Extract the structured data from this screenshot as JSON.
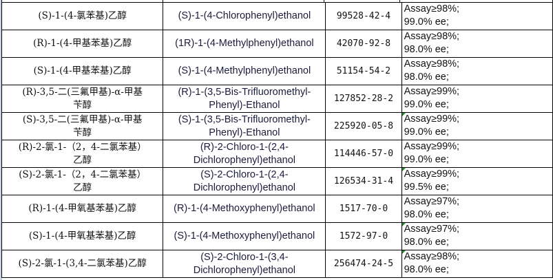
{
  "rows": [
    {
      "cn": "(S)-1-(4-氯苯基)乙醇",
      "en": "(S)-1-(4-Chlorophenyl)ethanol",
      "cas": "99528-42-4",
      "assay": "Assay≥98%;",
      "ee": "99.0% ee;",
      "flag": false
    },
    {
      "cn": "(R)-1-(4-甲基苯基)乙醇",
      "en": "(1R)-1-(4-Methylphenyl)ethanol",
      "cas": "42070-92-8",
      "assay": "Assay≥98%;",
      "ee": "98.0% ee;",
      "flag": false
    },
    {
      "cn": "(S)-1-(4-甲基苯基)乙醇",
      "en": "(S)-1-(4-Methylphenyl)ethanol",
      "cas": "51154-54-2",
      "assay": "Assay≥98%;",
      "ee": "98.0% ee;",
      "flag": false
    },
    {
      "cn": "(R)-3,5-二(三氟甲基)-α-甲基\n苄醇",
      "en": "(R)-1-(3,5-Bis-Trifluoromethyl-\nPhenyl)-Ethanol",
      "cas": "127852-28-2",
      "assay": "Assay≥99%;",
      "ee": "99.0% ee;",
      "flag": false
    },
    {
      "cn": "(S)-3,5-二(三氟甲基)-α-甲基\n苄醇",
      "en": "(S)-1-(3,5-Bis-Trifluoromethyl-\nPhenyl)-Ethanol",
      "cas": "225920-05-8",
      "assay": "Assay≥99%;",
      "ee": "99.0% ee;",
      "flag": true
    },
    {
      "cn": "(R)-2-氯-1-（2，4-二氯苯基）\n乙醇",
      "en": "(R)-2-Chloro-1-(2,4-\nDichlorophenyl)ethanol",
      "cas": "114446-57-0",
      "assay": "Assay≥99%;",
      "ee": "99.0% ee;",
      "flag": false
    },
    {
      "cn": "(S)-2-氯-1-（2，4-二氯苯基）\n乙醇",
      "en": "(S)-2-Chloro-1-(2,4-\nDichlorophenyl)ethanol",
      "cas": "126534-31-4",
      "assay": "Assay≥99%;",
      "ee": "99.5% ee;",
      "flag": true
    },
    {
      "cn": "(R)-1-(4-甲氧基苯基)乙醇",
      "en": "(R)-1-(4-Methoxyphenyl)ethanol",
      "cas": "1517-70-0",
      "assay": "Assay≥97%;",
      "ee": "98.0% ee;",
      "flag": false
    },
    {
      "cn": "(S)-1-(4-甲氧基苯基)乙醇",
      "en": "(S)-1-(4-Methoxyphenyl)ethanol",
      "cas": "1572-97-0",
      "assay": "Assay≥97%;",
      "ee": "98.0% ee;",
      "flag": true
    },
    {
      "cn": "(S)-2-氯-1-(3,4-二氯苯基)乙醇",
      "en": "(S)-2-Chloro-1-(3,4-\nDichlorophenyl)ethanol",
      "cas": "256474-24-5",
      "assay": "Assay≥98%;",
      "ee": "98.0% ee;",
      "flag": true
    }
  ],
  "colors": {
    "grid": "#000000",
    "flag": "#1f8a2e",
    "english_text": "#1c1c3c"
  }
}
